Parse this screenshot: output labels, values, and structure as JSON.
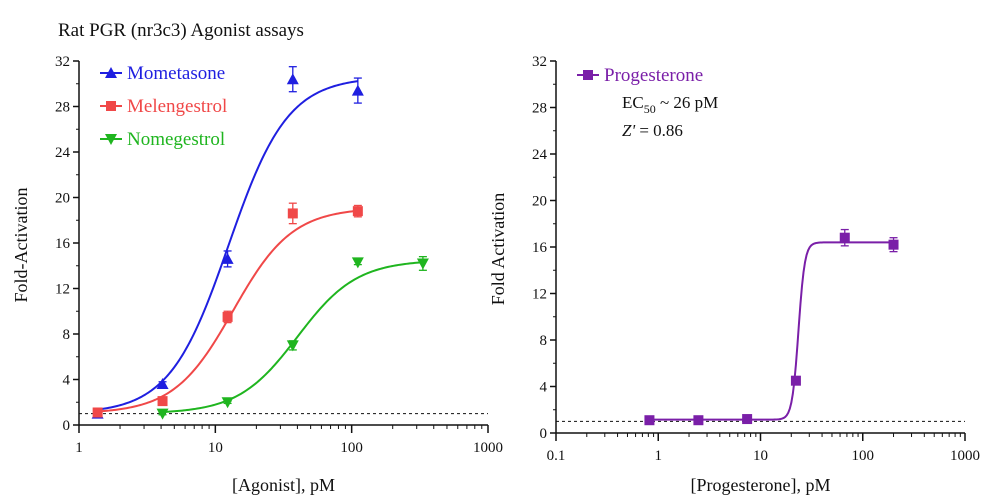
{
  "figure_title": "Rat PGR (nr3c3) Agonist assays",
  "chart_data": [
    {
      "type": "scatter",
      "title": "",
      "xlabel": "[Agonist], pM",
      "ylabel": "Fold-Activation",
      "x_scale": "log",
      "xlim": [
        1,
        1000
      ],
      "ylim": [
        0,
        32
      ],
      "x_ticks": [
        "1",
        "10",
        "100",
        "1000"
      ],
      "y_ticks": [
        "0",
        "4",
        "8",
        "12",
        "16",
        "20",
        "24",
        "28",
        "32"
      ],
      "baseline": 1,
      "grid": false,
      "legend_position": "top-left",
      "series": [
        {
          "name": "Mometasone",
          "color": "#1f1fe0",
          "marker": "triangle-up",
          "x": [
            1.37,
            4.1,
            12.3,
            37,
            111
          ],
          "y": [
            1.0,
            3.6,
            14.6,
            30.4,
            29.4
          ],
          "err": [
            0.2,
            0.2,
            0.7,
            1.1,
            1.1
          ],
          "fit": {
            "bottom": 1.0,
            "top": 30.6,
            "ec50": 12.5,
            "hill": 2.0
          }
        },
        {
          "name": "Melengestrol",
          "color": "#f04848",
          "marker": "square",
          "x": [
            1.37,
            4.1,
            12.3,
            37,
            111
          ],
          "y": [
            1.1,
            2.1,
            9.5,
            18.6,
            18.8
          ],
          "err": [
            0.2,
            0.2,
            0.5,
            0.9,
            0.5
          ],
          "fit": {
            "bottom": 1.0,
            "top": 19.1,
            "ec50": 13.5,
            "hill": 2.0
          }
        },
        {
          "name": "Nomegestrol",
          "color": "#1fb51f",
          "marker": "triangle-down",
          "x": [
            4.1,
            12.3,
            37,
            111,
            333
          ],
          "y": [
            1.0,
            2.0,
            7.0,
            14.3,
            14.2
          ],
          "err": [
            0.1,
            0.1,
            0.4,
            0.2,
            0.6
          ],
          "fit": {
            "bottom": 1.0,
            "top": 14.5,
            "ec50": 40,
            "hill": 2.0
          }
        }
      ]
    },
    {
      "type": "scatter",
      "title": "",
      "xlabel": "[Progesterone], pM",
      "ylabel": "Fold Activation",
      "x_scale": "log",
      "xlim": [
        0.1,
        1000
      ],
      "ylim": [
        0,
        32
      ],
      "x_ticks": [
        "0.1",
        "1",
        "10",
        "100",
        "1000"
      ],
      "y_ticks": [
        "0",
        "4",
        "8",
        "12",
        "16",
        "20",
        "24",
        "28",
        "32"
      ],
      "baseline": 1,
      "grid": false,
      "legend_position": "top-left",
      "annotation": {
        "ec50_prefix": "EC",
        "ec50_sub": "50",
        "ec50_value": " ~ 26 pM",
        "z_prefix": "Z'",
        "z_value": " = 0.86"
      },
      "series": [
        {
          "name": "Progesterone",
          "color": "#7a1fa8",
          "marker": "square",
          "x": [
            0.82,
            2.47,
            7.4,
            22.2,
            66.7,
            200
          ],
          "y": [
            1.1,
            1.1,
            1.2,
            4.5,
            16.8,
            16.2
          ],
          "err": [
            0.1,
            0.1,
            0.1,
            0.3,
            0.7,
            0.6
          ],
          "fit": {
            "bottom": 1.15,
            "top": 16.4,
            "ec50": 23.5,
            "hill": 14
          }
        }
      ]
    }
  ]
}
